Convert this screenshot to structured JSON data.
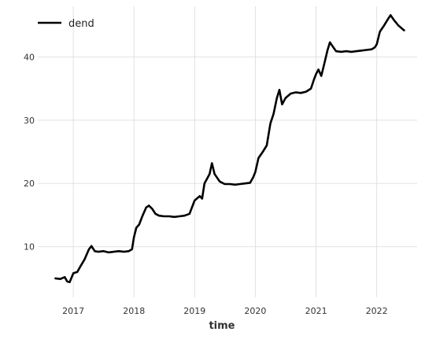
{
  "chart_data": {
    "type": "line",
    "xlabel": "time",
    "ylabel": "",
    "title": "",
    "xlim": [
      "2016-06-01",
      "2022-09-01"
    ],
    "ylim": [
      2,
      48
    ],
    "x_ticks": [
      {
        "date": "2017-01-01",
        "label": "2017"
      },
      {
        "date": "2018-01-01",
        "label": "2018"
      },
      {
        "date": "2019-01-01",
        "label": "2019"
      },
      {
        "date": "2020-01-01",
        "label": "2020"
      },
      {
        "date": "2021-01-01",
        "label": "2021"
      },
      {
        "date": "2022-01-01",
        "label": "2022"
      }
    ],
    "y_ticks": [
      10,
      20,
      30,
      40
    ],
    "grid": true,
    "legend_position": "top-left",
    "series": [
      {
        "name": "dend",
        "color": "#000000",
        "points": [
          [
            "2016-09-15",
            5.0
          ],
          [
            "2016-10-15",
            4.9
          ],
          [
            "2016-11-10",
            5.2
          ],
          [
            "2016-11-25",
            4.5
          ],
          [
            "2016-12-10",
            4.4
          ],
          [
            "2017-01-01",
            5.8
          ],
          [
            "2017-01-25",
            6.0
          ],
          [
            "2017-02-15",
            7.0
          ],
          [
            "2017-03-10",
            8.0
          ],
          [
            "2017-04-05",
            9.6
          ],
          [
            "2017-04-20",
            10.1
          ],
          [
            "2017-05-10",
            9.3
          ],
          [
            "2017-06-01",
            9.2
          ],
          [
            "2017-07-01",
            9.3
          ],
          [
            "2017-08-01",
            9.1
          ],
          [
            "2017-09-01",
            9.2
          ],
          [
            "2017-10-01",
            9.3
          ],
          [
            "2017-11-01",
            9.2
          ],
          [
            "2017-12-01",
            9.3
          ],
          [
            "2017-12-20",
            9.6
          ],
          [
            "2018-01-01",
            11.5
          ],
          [
            "2018-01-15",
            13.0
          ],
          [
            "2018-02-01",
            13.5
          ],
          [
            "2018-02-20",
            14.8
          ],
          [
            "2018-03-15",
            16.2
          ],
          [
            "2018-04-01",
            16.5
          ],
          [
            "2018-04-20",
            16.0
          ],
          [
            "2018-05-10",
            15.2
          ],
          [
            "2018-06-01",
            14.9
          ],
          [
            "2018-07-01",
            14.8
          ],
          [
            "2018-08-01",
            14.8
          ],
          [
            "2018-09-01",
            14.7
          ],
          [
            "2018-10-01",
            14.8
          ],
          [
            "2018-11-01",
            14.9
          ],
          [
            "2018-12-01",
            15.2
          ],
          [
            "2018-12-20",
            16.5
          ],
          [
            "2019-01-01",
            17.3
          ],
          [
            "2019-02-01",
            18.0
          ],
          [
            "2019-02-15",
            17.6
          ],
          [
            "2019-03-01",
            20.0
          ],
          [
            "2019-04-01",
            21.5
          ],
          [
            "2019-04-15",
            23.2
          ],
          [
            "2019-05-01",
            21.5
          ],
          [
            "2019-06-01",
            20.3
          ],
          [
            "2019-07-01",
            19.9
          ],
          [
            "2019-08-01",
            19.9
          ],
          [
            "2019-09-01",
            19.8
          ],
          [
            "2019-10-01",
            19.9
          ],
          [
            "2019-11-01",
            20.0
          ],
          [
            "2019-12-01",
            20.1
          ],
          [
            "2019-12-20",
            21.0
          ],
          [
            "2020-01-01",
            21.8
          ],
          [
            "2020-01-20",
            24.0
          ],
          [
            "2020-02-15",
            25.0
          ],
          [
            "2020-03-10",
            26.0
          ],
          [
            "2020-04-01",
            29.5
          ],
          [
            "2020-04-20",
            31.0
          ],
          [
            "2020-05-10",
            33.5
          ],
          [
            "2020-05-25",
            34.8
          ],
          [
            "2020-06-10",
            32.5
          ],
          [
            "2020-07-01",
            33.5
          ],
          [
            "2020-08-01",
            34.2
          ],
          [
            "2020-09-01",
            34.4
          ],
          [
            "2020-10-01",
            34.3
          ],
          [
            "2020-11-01",
            34.5
          ],
          [
            "2020-12-01",
            35.0
          ],
          [
            "2020-12-20",
            36.5
          ],
          [
            "2021-01-01",
            37.3
          ],
          [
            "2021-01-15",
            38.0
          ],
          [
            "2021-02-01",
            37.0
          ],
          [
            "2021-02-20",
            39.0
          ],
          [
            "2021-03-10",
            41.0
          ],
          [
            "2021-03-25",
            42.3
          ],
          [
            "2021-04-10",
            41.7
          ],
          [
            "2021-05-01",
            40.9
          ],
          [
            "2021-06-01",
            40.8
          ],
          [
            "2021-07-01",
            40.9
          ],
          [
            "2021-08-01",
            40.8
          ],
          [
            "2021-09-01",
            40.9
          ],
          [
            "2021-10-01",
            41.0
          ],
          [
            "2021-11-01",
            41.1
          ],
          [
            "2021-12-01",
            41.2
          ],
          [
            "2021-12-20",
            41.5
          ],
          [
            "2022-01-01",
            42.0
          ],
          [
            "2022-01-20",
            44.0
          ],
          [
            "2022-02-15",
            45.0
          ],
          [
            "2022-03-10",
            46.0
          ],
          [
            "2022-03-25",
            46.6
          ],
          [
            "2022-04-15",
            45.8
          ],
          [
            "2022-05-10",
            45.0
          ],
          [
            "2022-06-01",
            44.5
          ],
          [
            "2022-06-15",
            44.2
          ]
        ]
      }
    ]
  }
}
